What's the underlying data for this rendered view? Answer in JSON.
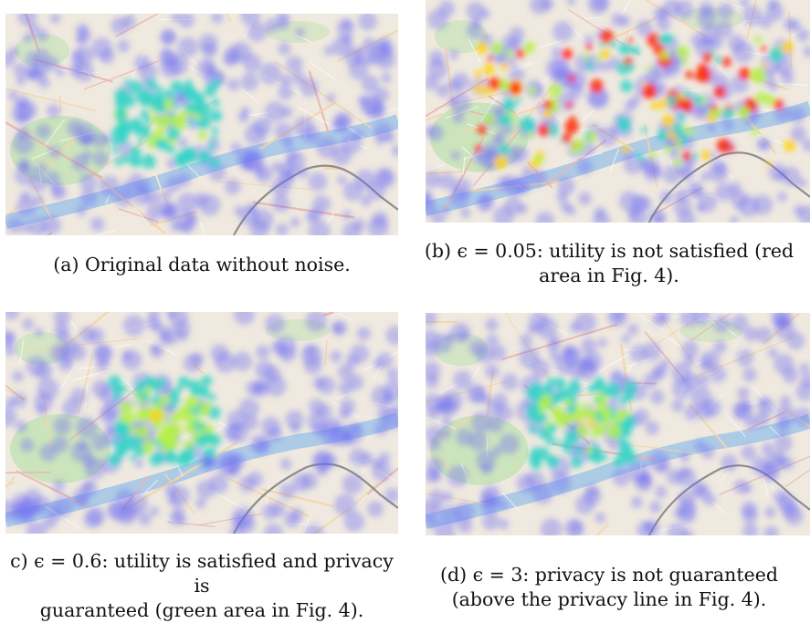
{
  "figures": [
    {
      "id": "a",
      "alt": "heatmap-map",
      "intensity": 0.55,
      "caption_lines": [
        "(a) Original data without noise."
      ]
    },
    {
      "id": "b",
      "alt": "heatmap-map",
      "intensity": 1.0,
      "caption_lines": [
        "(b) ϵ = 0.05: utility is not satisfied (red",
        "area in Fig. 4)."
      ]
    },
    {
      "id": "c",
      "alt": "heatmap-map",
      "intensity": 0.62,
      "caption_lines": [
        "c) ϵ = 0.6: utility is satisfied and privacy",
        "is",
        "guaranteed (green area in Fig. 4)."
      ]
    },
    {
      "id": "d",
      "alt": "heatmap-map",
      "intensity": 0.58,
      "caption_lines": [
        "(d) ϵ = 3: privacy is not guaranteed",
        "(above the privacy line in Fig. 4)."
      ]
    }
  ],
  "colors": {
    "map_base": "#efe9df",
    "park": "#c8e3b8",
    "river": "#aac9e6",
    "road": "#f4d7a8",
    "heat_low": "#6e6ef2",
    "heat_mid": "#37d3c8",
    "heat_mid2": "#b6f04a",
    "heat_high": "#ffd400",
    "heat_max": "#ff2a00"
  }
}
